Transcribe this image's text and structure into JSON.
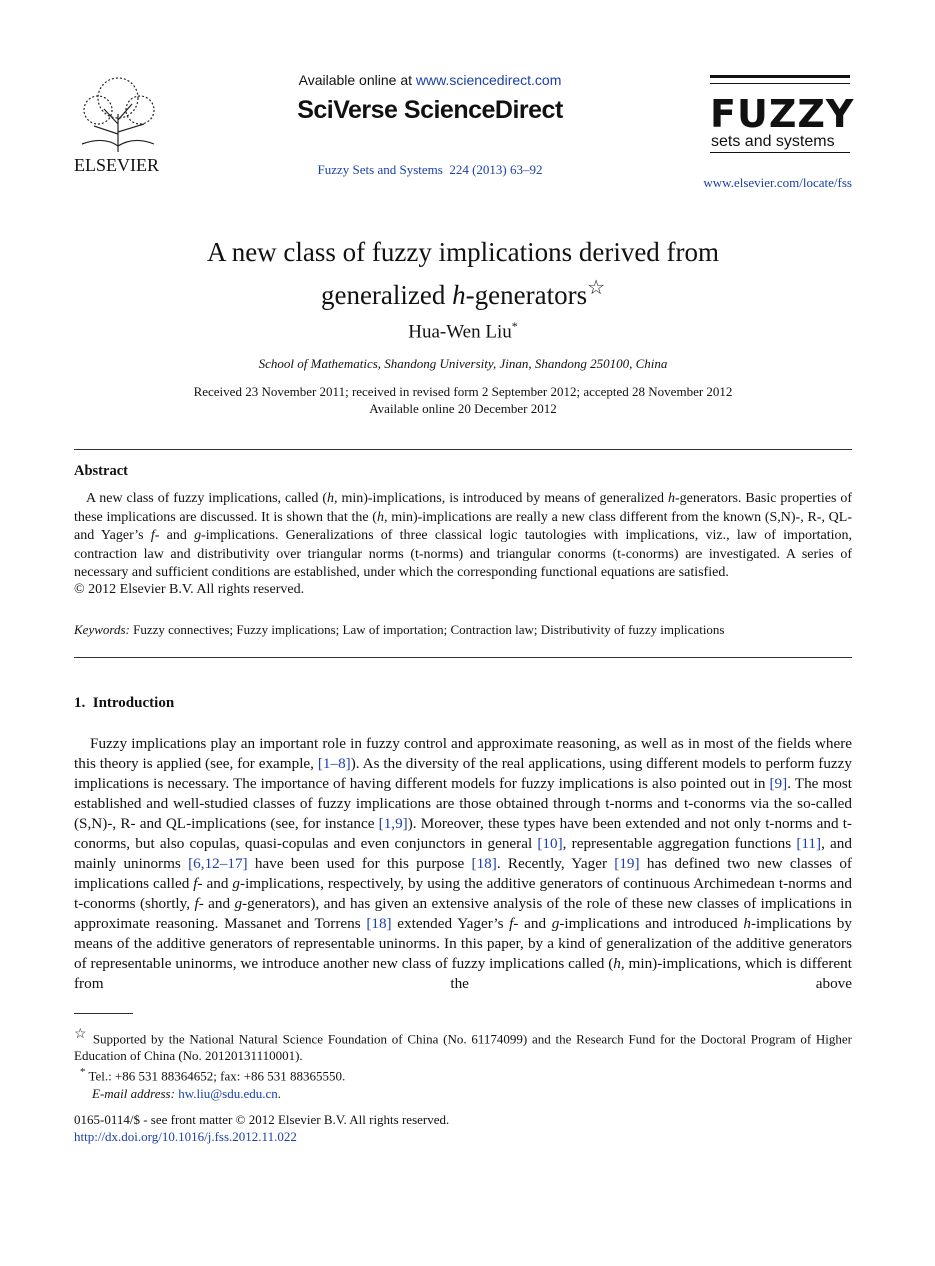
{
  "header": {
    "logo_text": "ELSEVIER",
    "available_prefix": "Available online at",
    "available_url": "www.sciencedirect.com",
    "brand": "SciVerse ScienceDirect",
    "journal_name": "Fuzzy Sets and Systems",
    "journal_ref": "224 (2013) 63–92",
    "fuzzy_logo_title": "FUZZY",
    "fuzzy_logo_sub": "sets and systems",
    "journal_url": "www.elsevier.com/locate/fss"
  },
  "article": {
    "title_line1": "A new class of fuzzy implications derived from",
    "title_line2": [
      "generalized ",
      {
        "i": "h"
      },
      "-generators"
    ],
    "title_note": "☆",
    "author": "Hua-Wen Liu",
    "author_note": "*",
    "affiliation": "School of Mathematics, Shandong University, Jinan, Shandong 250100, China",
    "received": "Received 23 November 2011; received in revised form 2 September 2012; accepted 28 November 2012",
    "available_online": "Available online 20 December 2012"
  },
  "abstract": {
    "heading": "Abstract",
    "runs": [
      "A new class of fuzzy implications, called (",
      {
        "i": "h"
      },
      ", min)-implications, is introduced by means of generalized ",
      {
        "i": "h"
      },
      "-generators. Basic properties of these implications are discussed. It is shown that the (",
      {
        "i": "h"
      },
      ", min)-implications are really a new class different from the known (S,N)-, R-, QL- and Yager’s ",
      {
        "i": "f"
      },
      "- and ",
      {
        "i": "g"
      },
      "-implications. Generalizations of three classical logic tautologies with implications, viz., law of importation, contraction law and distributivity over triangular norms (t-norms) and triangular conorms (t-conorms) are investigated. A series of necessary and sufficient conditions are established, under which the corresponding functional equations are satisfied."
    ],
    "copyright": "© 2012 Elsevier B.V. All rights reserved.",
    "keywords_label": "Keywords:",
    "keywords": "Fuzzy connectives; Fuzzy implications; Law of importation; Contraction law; Distributivity of fuzzy implications"
  },
  "section": {
    "heading": "1.  Introduction",
    "runs": [
      "Fuzzy implications play an important role in fuzzy control and approximate reasoning, as well as in most of the fields where this theory is applied (see, for example, ",
      {
        "link": "[1–8]"
      },
      "). As the diversity of the real applications, using different models to perform fuzzy implications is necessary. The importance of having different models for fuzzy implications is also pointed out in ",
      {
        "link": "[9]"
      },
      ". The most established and well-studied classes of fuzzy implications are those obtained through t-norms and t-conorms via the so-called (S,N)-, R- and QL-implications (see, for instance ",
      {
        "link": "[1,9]"
      },
      "). Moreover, these types have been extended and not only t-norms and t-conorms, but also copulas, quasi-copulas and even conjunctors in general ",
      {
        "link": "[10]"
      },
      ", representable aggregation functions ",
      {
        "link": "[11]"
      },
      ", and mainly uninorms ",
      {
        "link": "[6,12–17]"
      },
      " have been used for this purpose ",
      {
        "link": "[18]"
      },
      ". Recently, Yager ",
      {
        "link": "[19]"
      },
      " has defined two new classes of implications called ",
      {
        "i": "f"
      },
      "- and ",
      {
        "i": "g"
      },
      "-implications, respectively, by using the additive generators of continuous Archimedean t-norms and t-conorms (shortly, ",
      {
        "i": "f"
      },
      "- and ",
      {
        "i": "g"
      },
      "-generators), and has given an extensive analysis of the role of these new classes of implications in approximate reasoning. Massanet and Torrens ",
      {
        "link": "[18]"
      },
      " extended Yager’s ",
      {
        "i": "f"
      },
      "- and ",
      {
        "i": "g"
      },
      "-implications and introduced ",
      {
        "i": "h"
      },
      "-implications by means of the additive generators of representable uninorms. In this paper, by a kind of generalization of the additive generators of representable uninorms, we introduce another new class of fuzzy implications called (",
      {
        "i": "h"
      },
      ", min)-implications, which is different from the above"
    ]
  },
  "footnotes": {
    "star_mark": "☆",
    "star_text": "Supported by the National Natural Science Foundation of China (No. 61174099) and the Research Fund for the Doctoral Program of Higher Education of China (No. 20120131110001).",
    "tel_mark": "*",
    "tel_text": "Tel.: +86 531 88364652; fax: +86 531 88365550.",
    "email_runs": [
      {
        "i": "E-mail address: "
      },
      {
        "link": "hw.liu@sdu.edu.cn"
      },
      "."
    ]
  },
  "bottom": {
    "issn": "0165-0114/$ - see front matter © 2012 Elsevier B.V. All rights reserved.",
    "doi": "http://dx.doi.org/10.1016/j.fss.2012.11.022"
  }
}
